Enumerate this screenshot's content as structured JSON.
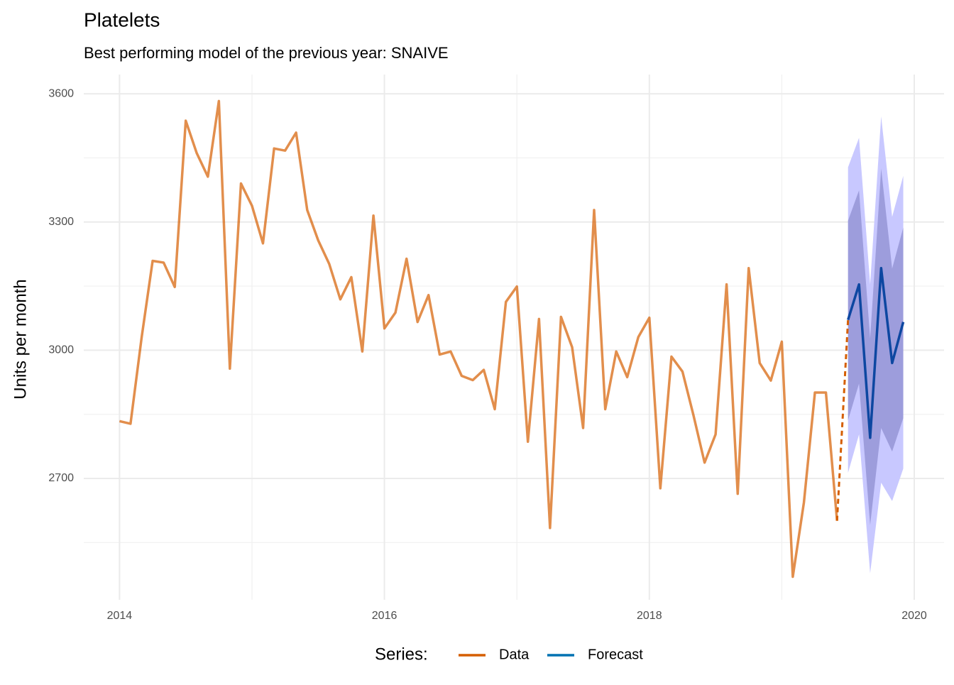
{
  "chart_data": {
    "type": "line",
    "title": "Platelets",
    "subtitle": "Best performing model of the previous year: SNAIVE",
    "y_label": "Units per month",
    "legend_title": "Series:",
    "xlim": [
      2013.73,
      2020.225
    ],
    "xticks": [
      2014,
      2016,
      2018,
      2020
    ],
    "xminor": [
      2015,
      2017,
      2019
    ],
    "ylim": [
      2416,
      3645
    ],
    "yticks": [
      2700,
      3000,
      3300,
      3600
    ],
    "yminor": [
      2550,
      2850,
      3150,
      3450
    ],
    "grid": true,
    "legend_position": "bottom",
    "band_colors": [
      "#c8c8ff",
      "#8f8fd0"
    ],
    "series": [
      {
        "name": "Data",
        "color": "#d55e00",
        "x": [
          2014,
          2014.083,
          2014.167,
          2014.25,
          2014.333,
          2014.417,
          2014.5,
          2014.583,
          2014.667,
          2014.75,
          2014.833,
          2014.917,
          2015,
          2015.083,
          2015.167,
          2015.25,
          2015.333,
          2015.417,
          2015.5,
          2015.583,
          2015.667,
          2015.75,
          2015.833,
          2015.917,
          2016,
          2016.083,
          2016.167,
          2016.25,
          2016.333,
          2016.417,
          2016.5,
          2016.583,
          2016.667,
          2016.75,
          2016.833,
          2016.917,
          2017,
          2017.083,
          2017.167,
          2017.25,
          2017.333,
          2017.417,
          2017.5,
          2017.583,
          2017.667,
          2017.75,
          2017.833,
          2017.917,
          2018,
          2018.083,
          2018.167,
          2018.25,
          2018.333,
          2018.417,
          2018.5,
          2018.583,
          2018.667,
          2018.75,
          2018.833,
          2018.917,
          2019,
          2019.083,
          2019.167,
          2019.25,
          2019.333,
          2019.417
        ],
        "values": [
          2834,
          2828,
          3030,
          3209,
          3205,
          3148,
          3537,
          3461,
          3406,
          3583,
          2957,
          3390,
          3338,
          3250,
          3472,
          3467,
          3509,
          3328,
          3257,
          3202,
          3119,
          3171,
          2997,
          3315,
          3051,
          3088,
          3214,
          3066,
          3129,
          2990,
          2997,
          2940,
          2930,
          2954,
          2862,
          3113,
          3149,
          2786,
          3073,
          2584,
          3078,
          3007,
          2818,
          3328,
          2862,
          2997,
          2937,
          3031,
          3076,
          2677,
          2985,
          2950,
          2848,
          2737,
          2803,
          3154,
          2664,
          3192,
          2970,
          2929,
          3020,
          2470,
          2644,
          2901,
          2901,
          2601
        ]
      },
      {
        "name": "Forecast",
        "color": "#0072b2",
        "x": [
          2019.5,
          2019.583,
          2019.667,
          2019.75,
          2019.833,
          2019.917
        ],
        "values": [
          3071,
          3154,
          2795,
          3192,
          2970,
          3066
        ],
        "lo80": [
          2836,
          2922,
          2591,
          2818,
          2763,
          2841
        ],
        "hi80": [
          3303,
          3374,
          3028,
          3425,
          3191,
          3287
        ],
        "lo95": [
          2713,
          2803,
          2478,
          2690,
          2647,
          2723
        ],
        "hi95": [
          3428,
          3497,
          3154,
          3547,
          3312,
          3408
        ]
      }
    ]
  }
}
